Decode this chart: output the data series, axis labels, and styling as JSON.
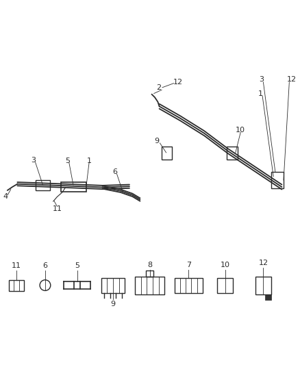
{
  "background_color": "#ffffff",
  "fig_width": 4.39,
  "fig_height": 5.33,
  "dpi": 100,
  "line_color": "#2a2a2a",
  "label_color": "#2a2a2a",
  "label_fontsize": 8
}
